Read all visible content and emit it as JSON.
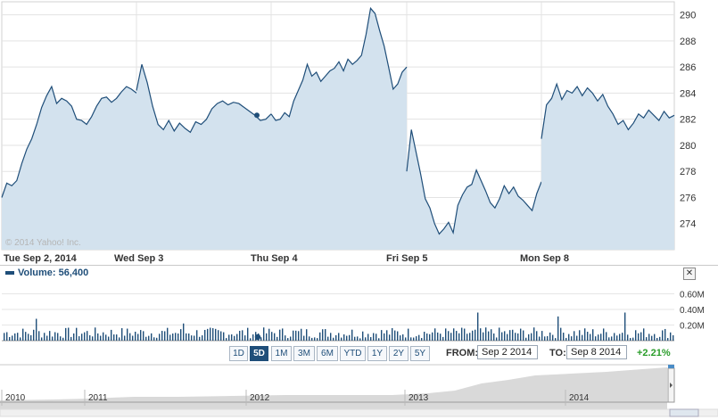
{
  "chart_data": [
    {
      "type": "area",
      "copyright": "© 2014 Yahoo! Inc.",
      "x_ticks": [
        "Tue Sep 2, 2014",
        "Wed Sep 3",
        "Thu Sep 4",
        "Fri Sep 5",
        "Mon Sep 8"
      ],
      "y_ticks": [
        "290",
        "288",
        "286",
        "284",
        "282",
        "280",
        "278",
        "276",
        "274"
      ],
      "ylim": [
        272,
        291
      ],
      "grid": true,
      "series": [
        {
          "name": "Sep 2",
          "values": [
            276.0,
            277.1,
            276.9,
            277.3,
            278.6,
            279.7,
            280.5,
            281.6,
            282.9,
            283.8,
            284.5,
            283.2,
            283.6,
            283.4,
            283.0,
            282.0,
            281.9,
            281.6,
            282.2,
            283.0,
            283.6,
            283.7,
            283.3,
            283.6,
            284.1,
            284.5,
            284.3,
            284.0
          ]
        },
        {
          "name": "Sep 3",
          "values": [
            284.2,
            286.2,
            284.8,
            283.0,
            281.6,
            281.2,
            281.9,
            281.1,
            281.7,
            281.3,
            281.0,
            281.8,
            281.6,
            282.0,
            282.8,
            283.2,
            283.4,
            283.1,
            283.3,
            283.2,
            282.9,
            282.6,
            282.3,
            281.9,
            282.0,
            282.4
          ]
        },
        {
          "name": "Sep 4",
          "values": [
            282.4,
            281.9,
            282.0,
            282.5,
            282.2,
            283.4,
            284.2,
            285.0,
            286.2,
            285.3,
            285.6,
            284.9,
            285.3,
            285.7,
            285.9,
            286.4,
            285.7,
            286.6,
            286.2,
            286.5,
            286.9,
            288.5,
            290.5,
            290.1,
            288.8,
            287.6,
            286.0,
            284.3,
            284.7,
            285.6,
            286.0
          ]
        },
        {
          "name": "Sep 5",
          "values": [
            278.0,
            281.2,
            279.5,
            277.8,
            275.9,
            275.2,
            274.0,
            273.2,
            273.6,
            274.1,
            273.3,
            275.4,
            276.2,
            276.8,
            277.0,
            278.1,
            277.3,
            276.5,
            275.6,
            275.2,
            275.9,
            276.9,
            276.3,
            276.8,
            276.1,
            275.8,
            275.4,
            275.0,
            276.3,
            277.2
          ]
        },
        {
          "name": "Sep 8",
          "values": [
            280.5,
            283.1,
            283.6,
            284.7,
            283.5,
            284.2,
            284.0,
            284.5,
            283.8,
            284.4,
            284.0,
            283.4,
            283.9,
            283.0,
            282.4,
            281.6,
            281.9,
            281.2,
            281.7,
            282.4,
            282.1,
            282.7,
            282.3,
            281.9,
            282.6,
            282.1,
            282.3
          ]
        }
      ]
    },
    {
      "type": "bar",
      "title": "Volume: 56,400",
      "y_ticks": [
        "0.60M",
        "0.40M",
        "0.20M"
      ],
      "ylim": [
        0,
        0.8
      ],
      "spikes": [
        0.75,
        0.32,
        0.28,
        0.25,
        0.36,
        0.33,
        0.22,
        0.31,
        0.68,
        0.35,
        0.3,
        0.4,
        0.33,
        0.36,
        0.26,
        0.38,
        0.35,
        0.31,
        0.24,
        0.36
      ]
    }
  ],
  "volume": {
    "title": "Volume: 56,400"
  },
  "range_buttons": [
    "1D",
    "5D",
    "1M",
    "3M",
    "6M",
    "YTD",
    "1Y",
    "2Y",
    "5Y"
  ],
  "active_range": "5D",
  "from": {
    "label": "FROM:",
    "value": "Sep 2 2014"
  },
  "to": {
    "label": "TO:",
    "value": "Sep 8 2014"
  },
  "change": "+2.21%",
  "navigator": {
    "years": [
      "2010",
      "2011",
      "2012",
      "2013",
      "2014"
    ]
  },
  "colors": {
    "line": "#1f4e79",
    "fill": "#d3e2ee",
    "grid": "#e3e3e3",
    "volume": "#1f4e79",
    "positive": "#2a9d2a",
    "navigator": "#d9d9d9"
  }
}
